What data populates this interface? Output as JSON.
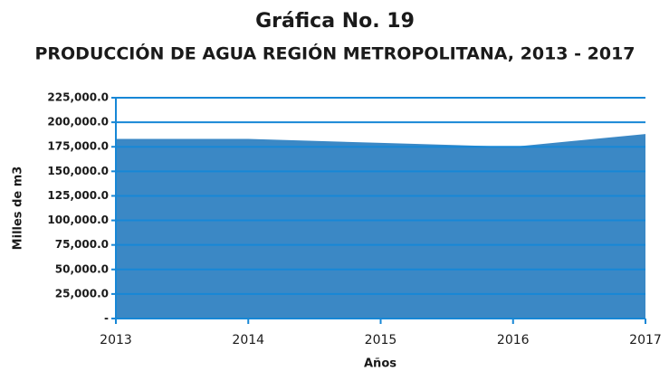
{
  "chart_data": {
    "type": "area",
    "title": "Gráfica No. 19",
    "subtitle": "PRODUCCIÓN DE AGUA REGIÓN METROPOLITANA, 2013 - 2017",
    "y_label": "Milles de m3",
    "x_label": "Años",
    "categories": [
      "2013",
      "2014",
      "2015",
      "2016",
      "2017"
    ],
    "values": [
      183000,
      183000,
      179000,
      175000,
      188000
    ],
    "color": "#3b88c5",
    "ylim": [
      0,
      225000
    ],
    "yticks": [
      {
        "value": 0,
        "label": "-"
      },
      {
        "value": 25000,
        "label": "25,000.0"
      },
      {
        "value": 50000,
        "label": "50,000.0"
      },
      {
        "value": 75000,
        "label": "75,000.0"
      },
      {
        "value": 100000,
        "label": "100,000.0"
      },
      {
        "value": 125000,
        "label": "125,000.0"
      },
      {
        "value": 150000,
        "label": "150,000.0"
      },
      {
        "value": 175000,
        "label": "175,000.0"
      },
      {
        "value": 200000,
        "label": "200,000.0"
      },
      {
        "value": 225000,
        "label": "225,000.0"
      }
    ],
    "grid": true
  }
}
